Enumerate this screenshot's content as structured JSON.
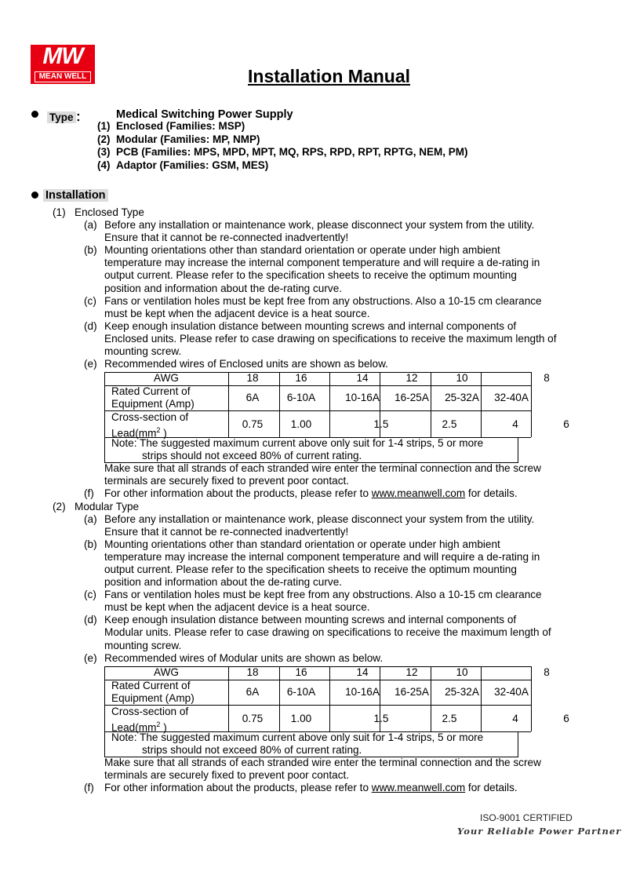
{
  "logo": {
    "mark": "MW",
    "text": "MEAN WELL",
    "color": "#e60012"
  },
  "title": "Installation Manual",
  "type_section": {
    "label": "Type",
    "colon": "：",
    "heading": "Medical Switching Power Supply",
    "items": [
      {
        "num": "(1)",
        "text": "Enclosed (Families: MSP)"
      },
      {
        "num": "(2)",
        "text": "Modular (Families: MP, NMP)"
      },
      {
        "num": "(3)",
        "text": " PCB (Families: MPS, MPD, MPT, MQ, RPS, RPD, RPT, RPTG, NEM, PM)"
      },
      {
        "num": "(4)",
        "text": "Adaptor (Families: GSM, MES)"
      }
    ]
  },
  "installation_label": "Installation",
  "sections": [
    {
      "num": "(1)",
      "title": "Enclosed Type",
      "items": [
        {
          "label": "(a)",
          "lines": [
            "Before any installation or maintenance work, please disconnect your system from the utility.",
            "Ensure that it cannot be re-connected inadvertently!"
          ]
        },
        {
          "label": "(b)",
          "lines": [
            "Mounting orientations other than standard orientation or operate under high ambient",
            "temperature may increase the internal component temperature and will require a de-rating in",
            "output current. Please refer to the specification sheets to receive the optimum mounting",
            "position and information about the de-rating curve."
          ]
        },
        {
          "label": "(c)",
          "lines": [
            "Fans or ventilation holes must be kept free from any obstructions. Also a 10-15 cm clearance",
            "must be kept when the adjacent device is a heat source."
          ]
        },
        {
          "label": "(d)",
          "lines": [
            "Keep enough insulation distance between mounting screws and internal components of",
            "Enclosed units. Please refer to case drawing on specifications to receive the maximum length of",
            "mounting screw."
          ]
        },
        {
          "label": "(e)",
          "lines": [
            "Recommended wires of Enclosed units are shown as below."
          ],
          "table": true,
          "after": [
            "Make sure that all strands of each stranded wire enter the terminal connection and the screw",
            "terminals are securely fixed to prevent poor contact."
          ]
        },
        {
          "label": "(f)",
          "pre": "For other information about the products, please refer to ",
          "link": "www.meanwell.com",
          "post": " for details."
        }
      ]
    },
    {
      "num": "(2)",
      "title": "Modular Type",
      "items": [
        {
          "label": "(a)",
          "lines": [
            "Before any installation or maintenance work, please disconnect your system from the utility.",
            "Ensure that it cannot be re-connected inadvertently!"
          ]
        },
        {
          "label": "(b)",
          "lines": [
            "Mounting orientations other than standard orientation or operate under high ambient",
            "temperature may increase the internal component temperature and will require a de-rating in",
            "output current. Please refer to the specification sheets to receive the optimum mounting",
            "position and information about the de-rating curve."
          ]
        },
        {
          "label": "(c)",
          "lines": [
            "Fans or ventilation holes must be kept free from any obstructions. Also a 10-15 cm clearance",
            "must be kept when the adjacent device is a heat source."
          ]
        },
        {
          "label": "(d)",
          "lines": [
            "Keep enough insulation distance between mounting screws and internal components of",
            "Modular units. Please refer to case drawing on specifications to receive the maximum length of",
            "mounting screw."
          ]
        },
        {
          "label": "(e)",
          "lines": [
            "Recommended wires of Modular units are shown as below."
          ],
          "table": true,
          "after": [
            "Make sure that all strands of each stranded wire enter the terminal connection and the screw",
            "terminals are securely fixed to prevent poor contact."
          ]
        },
        {
          "label": "(f)",
          "pre": "For other information about the products, please refer to ",
          "link": "www.meanwell.com",
          "post": " for details."
        }
      ]
    }
  ],
  "wire_table": {
    "awg_header": "AWG",
    "awg": [
      "18",
      "16",
      "14",
      "12",
      "10",
      "8"
    ],
    "current_label": [
      "Rated Current of",
      "Equipment (Amp)"
    ],
    "current": [
      "6A",
      "6-10A",
      "10-16A",
      "16-25A",
      "25-32A",
      "32-40A"
    ],
    "cross_label": [
      "Cross-section of",
      "Lead(mm",
      "2",
      " )"
    ],
    "cross": [
      "0.75",
      "1.00",
      "1.5",
      "2.5",
      "4",
      "6"
    ],
    "note": [
      "Note: The suggested maximum current above only suit for 1-4 strips, 5 or more",
      "strips should not exceed 80% of current rating."
    ]
  },
  "footer": {
    "certified": "ISO-9001 CERTIFIED",
    "slogan": "Your Reliable Power Partner"
  }
}
